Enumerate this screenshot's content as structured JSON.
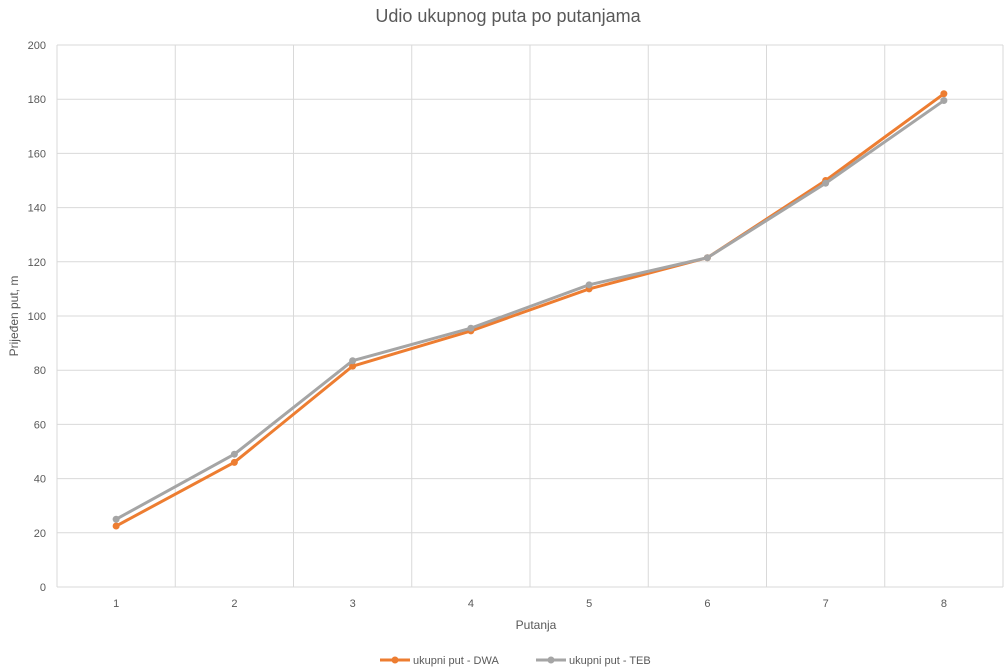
{
  "chart_data": {
    "type": "line",
    "title": "Udio ukupnog puta po putanjama",
    "xlabel": "Putanja",
    "ylabel": "Prijeđen put, m",
    "categories": [
      "1",
      "2",
      "3",
      "4",
      "5",
      "6",
      "7",
      "8"
    ],
    "ylim": [
      0,
      200
    ],
    "yticks": [
      0,
      20,
      40,
      60,
      80,
      100,
      120,
      140,
      160,
      180,
      200
    ],
    "grid": true,
    "legend": "bottom",
    "series": [
      {
        "name": "ukupni put - DWA",
        "color": "#ED7D31",
        "values": [
          22.5,
          46,
          81.5,
          94.5,
          110,
          121.5,
          150,
          182
        ]
      },
      {
        "name": "ukupni put - TEB",
        "color": "#A5A5A5",
        "values": [
          25,
          49,
          83.5,
          95.5,
          111.5,
          121.5,
          149,
          179.5
        ]
      }
    ]
  }
}
